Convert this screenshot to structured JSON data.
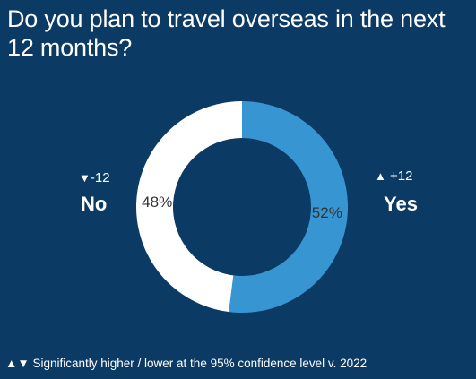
{
  "title": "Do you plan to travel overseas in the next 12 months?",
  "chart_data": {
    "type": "pie",
    "style": "donut",
    "categories": [
      "Yes",
      "No"
    ],
    "values": [
      52,
      48
    ],
    "value_labels": [
      "52%",
      "48%"
    ],
    "colors": [
      "#3796d2",
      "#ffffff"
    ],
    "label_color": "#333333",
    "changes": [
      {
        "category": "No",
        "direction": "down",
        "symbol": "▼",
        "value": "-12"
      },
      {
        "category": "Yes",
        "direction": "up",
        "symbol": "▲",
        "value": "+12"
      }
    ]
  },
  "labels": {
    "no": {
      "symbol": "▼",
      "change": "-12",
      "category": "No"
    },
    "yes": {
      "symbol": "▲",
      "change": "+12",
      "category": "Yes"
    }
  },
  "footnote": "▲▼ Significantly higher / lower at the 95% confidence level v. 2022",
  "colors": {
    "background": "#0b3a64",
    "yes": "#3796d2",
    "no": "#ffffff"
  }
}
